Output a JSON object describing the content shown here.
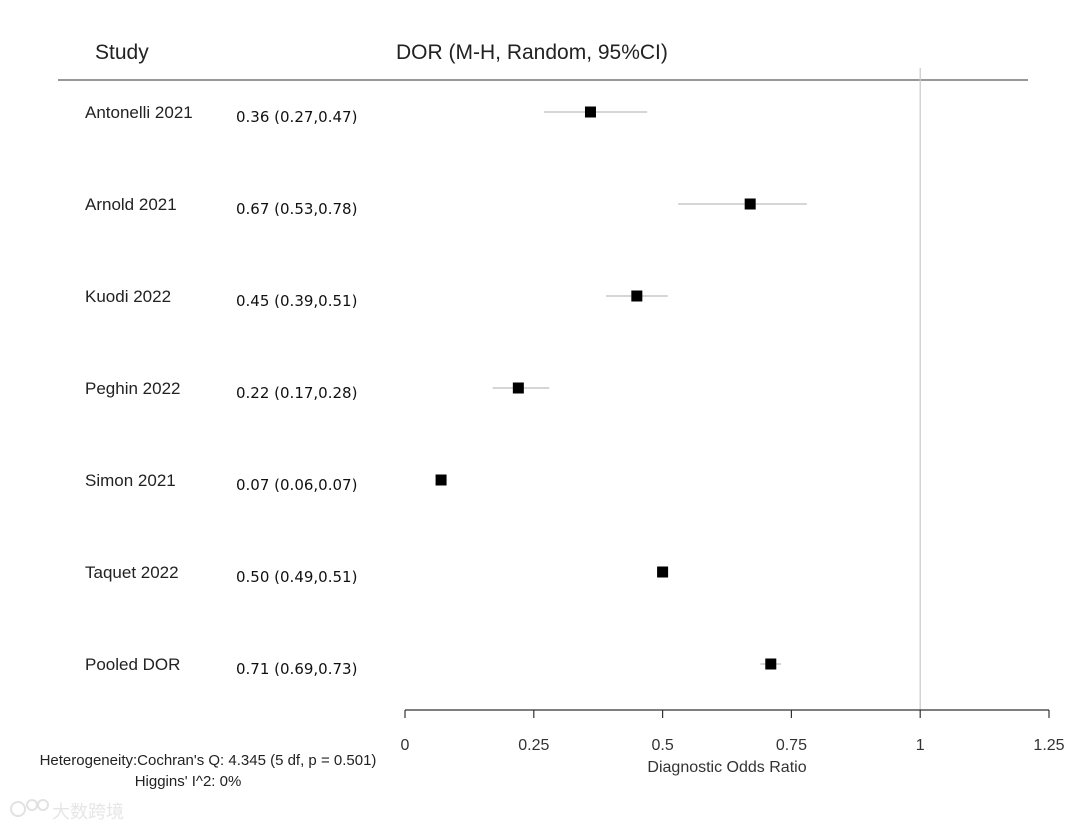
{
  "chart_data": {
    "type": "forest",
    "headers": {
      "study": "Study",
      "estimate": "DOR (M-H, Random, 95%CI)"
    },
    "xlabel": "Diagnostic Odds Ratio",
    "xlim": [
      0,
      1.25
    ],
    "xticks": [
      {
        "value": 0,
        "label": "0"
      },
      {
        "value": 0.25,
        "label": "0.25"
      },
      {
        "value": 0.5,
        "label": "0.5"
      },
      {
        "value": 0.75,
        "label": "0.75"
      },
      {
        "value": 1,
        "label": "1"
      },
      {
        "value": 1.25,
        "label": "1.25"
      }
    ],
    "reference_line": 1,
    "rows": [
      {
        "study": "Antonelli 2021",
        "label": "0.36 (0.27,0.47)",
        "est": 0.36,
        "lo": 0.27,
        "hi": 0.47
      },
      {
        "study": "Arnold 2021",
        "label": "0.67 (0.53,0.78)",
        "est": 0.67,
        "lo": 0.53,
        "hi": 0.78
      },
      {
        "study": "Kuodi 2022",
        "label": "0.45 (0.39,0.51)",
        "est": 0.45,
        "lo": 0.39,
        "hi": 0.51
      },
      {
        "study": "Peghin 2022",
        "label": "0.22 (0.17,0.28)",
        "est": 0.22,
        "lo": 0.17,
        "hi": 0.28
      },
      {
        "study": "Simon 2021",
        "label": "0.07 (0.06,0.07)",
        "est": 0.07,
        "lo": 0.06,
        "hi": 0.07
      },
      {
        "study": "Taquet 2022",
        "label": "0.50 (0.49,0.51)",
        "est": 0.5,
        "lo": 0.49,
        "hi": 0.51
      },
      {
        "study": "Pooled DOR",
        "label": "0.71 (0.69,0.73)",
        "est": 0.71,
        "lo": 0.69,
        "hi": 0.73
      }
    ],
    "heterogeneity": {
      "line1": "Heterogeneity:Cochran's Q: 4.345 (5 df, p = 0.501)",
      "line2": "Higgins' I^2: 0%"
    }
  },
  "watermark": "大数跨境"
}
